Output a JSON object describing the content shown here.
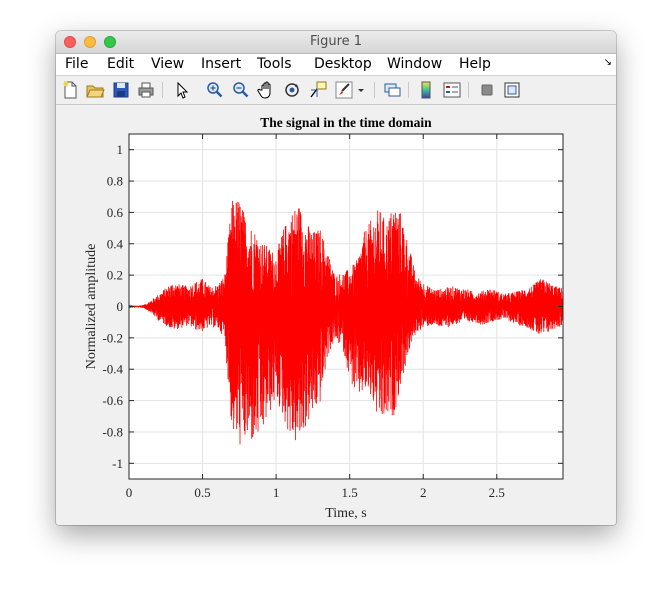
{
  "window": {
    "title": "Figure 1"
  },
  "menu": {
    "items": [
      "File",
      "Edit",
      "View",
      "Insert",
      "Tools",
      "Desktop",
      "Window",
      "Help"
    ]
  },
  "toolbar": {
    "icons": [
      "new-figure-icon",
      "open-file-icon",
      "save-icon",
      "print-icon",
      "edit-plot-arrow-icon",
      "zoom-in-icon",
      "zoom-out-icon",
      "pan-hand-icon",
      "rotate-3d-icon",
      "data-cursor-icon",
      "brush-icon",
      "brush-dropdown-icon",
      "link-plot-icon",
      "colorbar-icon",
      "legend-icon",
      "hide-plot-tools-icon",
      "show-plot-tools-icon"
    ]
  },
  "chart_data": {
    "type": "line",
    "title": "The signal in the time domain",
    "xlabel": "Time, s",
    "ylabel": "Normalized amplitude",
    "xlim": [
      0,
      2.95
    ],
    "ylim": [
      -1.1,
      1.1
    ],
    "xticks": [
      "0",
      "0.5",
      "1",
      "1.5",
      "2",
      "2.5"
    ],
    "yticks": [
      "-1",
      "-0.8",
      "-0.6",
      "-0.4",
      "-0.2",
      "0",
      "0.2",
      "0.4",
      "0.6",
      "0.8",
      "1"
    ],
    "grid": true,
    "series": [
      {
        "color": "#ff0000",
        "envelope": {
          "t": [
            0,
            0.05,
            0.1,
            0.15,
            0.2,
            0.25,
            0.3,
            0.35,
            0.4,
            0.45,
            0.5,
            0.55,
            0.6,
            0.65,
            0.7,
            0.75,
            0.8,
            0.85,
            0.9,
            0.95,
            1.0,
            1.05,
            1.1,
            1.15,
            1.2,
            1.25,
            1.3,
            1.35,
            1.4,
            1.45,
            1.5,
            1.55,
            1.6,
            1.65,
            1.7,
            1.75,
            1.8,
            1.85,
            1.9,
            1.95,
            2.0,
            2.05,
            2.1,
            2.15,
            2.2,
            2.25,
            2.3,
            2.35,
            2.4,
            2.45,
            2.5,
            2.55,
            2.6,
            2.65,
            2.7,
            2.75,
            2.8,
            2.85,
            2.9,
            2.95
          ],
          "upper": [
            0.002,
            0.005,
            0.01,
            0.04,
            0.08,
            0.12,
            0.16,
            0.14,
            0.13,
            0.16,
            0.18,
            0.13,
            0.14,
            0.2,
            0.68,
            0.7,
            0.55,
            0.5,
            0.42,
            0.38,
            0.34,
            0.5,
            0.6,
            0.67,
            0.55,
            0.48,
            0.5,
            0.36,
            0.2,
            0.22,
            0.24,
            0.3,
            0.48,
            0.56,
            0.63,
            0.54,
            0.66,
            0.6,
            0.4,
            0.2,
            0.16,
            0.12,
            0.11,
            0.12,
            0.13,
            0.12,
            0.11,
            0.09,
            0.1,
            0.12,
            0.1,
            0.08,
            0.09,
            0.1,
            0.12,
            0.14,
            0.18,
            0.16,
            0.13,
            0.12
          ],
          "lower": [
            -0.002,
            -0.005,
            -0.01,
            -0.04,
            -0.09,
            -0.12,
            -0.15,
            -0.14,
            -0.12,
            -0.15,
            -0.16,
            -0.13,
            -0.14,
            -0.2,
            -0.8,
            -0.9,
            -0.87,
            -0.88,
            -0.84,
            -0.7,
            -0.6,
            -0.72,
            -0.85,
            -0.9,
            -0.78,
            -0.7,
            -0.62,
            -0.32,
            -0.22,
            -0.26,
            -0.46,
            -0.6,
            -0.55,
            -0.6,
            -0.76,
            -0.73,
            -0.7,
            -0.5,
            -0.3,
            -0.17,
            -0.14,
            -0.12,
            -0.13,
            -0.14,
            -0.12,
            -0.11,
            -0.1,
            -0.1,
            -0.12,
            -0.1,
            -0.09,
            -0.08,
            -0.1,
            -0.12,
            -0.13,
            -0.16,
            -0.2,
            -0.17,
            -0.14,
            -0.12
          ]
        }
      }
    ]
  }
}
